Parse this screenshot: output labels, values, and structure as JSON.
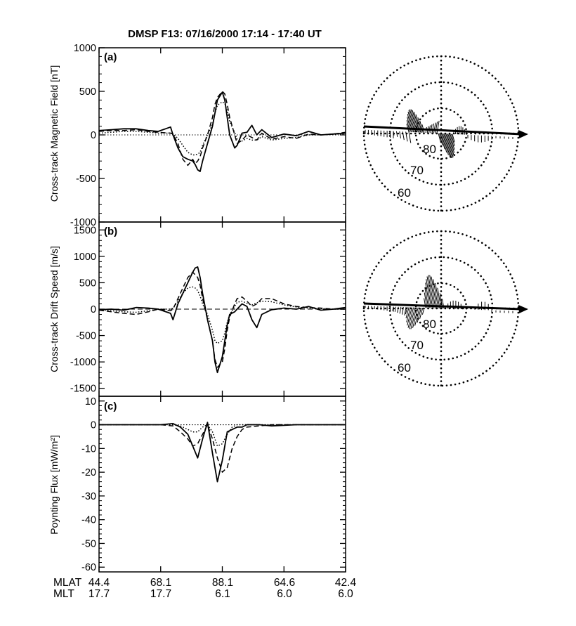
{
  "figure_title": "DMSP F13: 07/16/2000 17:14 - 17:40 UT",
  "chart_data": [
    {
      "type": "line",
      "panel_label": "(a)",
      "ylabel": "Cross-track Magnetic Field [nT]",
      "ylim": [
        -1000,
        1000
      ],
      "yticks": [
        1000,
        500,
        0,
        -500,
        -1000
      ],
      "ytick_labels": [
        "1000",
        "500",
        "0",
        "-500",
        "-1000"
      ],
      "zero_line": "dotted",
      "x": [
        0,
        0.05,
        0.1,
        0.15,
        0.2,
        0.24,
        0.29,
        0.3,
        0.32,
        0.34,
        0.36,
        0.38,
        0.39,
        0.4,
        0.41,
        0.42,
        0.44,
        0.46,
        0.47,
        0.48,
        0.5,
        0.51,
        0.52,
        0.53,
        0.55,
        0.56,
        0.58,
        0.6,
        0.62,
        0.64,
        0.66,
        0.7,
        0.75,
        0.8,
        0.85,
        0.9,
        0.95,
        1.0
      ],
      "series": [
        {
          "style": "solid",
          "values": [
            50,
            60,
            70,
            70,
            50,
            40,
            90,
            0,
            -150,
            -250,
            -280,
            -300,
            -340,
            -400,
            -420,
            -300,
            -100,
            100,
            250,
            400,
            490,
            400,
            200,
            0,
            -150,
            -120,
            20,
            30,
            110,
            0,
            60,
            -30,
            10,
            -10,
            40,
            0,
            10,
            20
          ]
        },
        {
          "style": "dashed",
          "values": [
            40,
            50,
            50,
            60,
            40,
            30,
            20,
            10,
            -100,
            -280,
            -350,
            -280,
            -330,
            -300,
            -250,
            -150,
            0,
            200,
            350,
            430,
            500,
            470,
            350,
            200,
            0,
            -100,
            -60,
            0,
            -30,
            -60,
            20,
            -50,
            -20,
            -40,
            10,
            0,
            10,
            30
          ]
        },
        {
          "style": "dotted",
          "values": [
            20,
            30,
            40,
            40,
            30,
            20,
            20,
            10,
            -40,
            -120,
            -200,
            -230,
            -230,
            -220,
            -200,
            -120,
            0,
            120,
            250,
            340,
            380,
            360,
            280,
            150,
            30,
            -50,
            -70,
            -40,
            -60,
            -60,
            -20,
            -60,
            -40,
            -30,
            0,
            0,
            10,
            10
          ]
        }
      ],
      "polar_inset": {
        "circle_labels": [
          "80",
          "70",
          "60"
        ],
        "description_free": true
      }
    },
    {
      "type": "line",
      "panel_label": "(b)",
      "ylabel": "Cross-track Drift Speed [m/s]",
      "ylim": [
        -1650,
        1650
      ],
      "yticks": [
        1500,
        1000,
        500,
        0,
        -500,
        -1000,
        -1500
      ],
      "ytick_labels": [
        "1500",
        "1000",
        "500",
        "0",
        "-500",
        "-1000",
        "-1500"
      ],
      "zero_line": "dashed",
      "x": [
        0,
        0.05,
        0.1,
        0.15,
        0.2,
        0.24,
        0.29,
        0.3,
        0.32,
        0.34,
        0.36,
        0.38,
        0.39,
        0.4,
        0.41,
        0.42,
        0.44,
        0.46,
        0.47,
        0.48,
        0.5,
        0.51,
        0.52,
        0.53,
        0.55,
        0.56,
        0.58,
        0.6,
        0.62,
        0.64,
        0.66,
        0.7,
        0.75,
        0.8,
        0.85,
        0.9,
        0.95,
        1.0
      ],
      "series": [
        {
          "style": "solid",
          "values": [
            -10,
            0,
            -20,
            30,
            20,
            0,
            -80,
            -200,
            100,
            300,
            500,
            700,
            780,
            800,
            600,
            300,
            -200,
            -600,
            -1000,
            -1200,
            -900,
            -600,
            -300,
            -100,
            -50,
            0,
            100,
            50,
            -200,
            -350,
            -100,
            -10,
            20,
            0,
            50,
            -20,
            0,
            30
          ]
        },
        {
          "style": "dashed",
          "values": [
            -20,
            -50,
            -80,
            -100,
            -50,
            0,
            -30,
            0,
            200,
            400,
            600,
            700,
            650,
            600,
            450,
            200,
            -200,
            -600,
            -950,
            -1100,
            -1000,
            -750,
            -400,
            -150,
            100,
            200,
            230,
            150,
            50,
            100,
            200,
            200,
            100,
            50,
            30,
            20,
            0,
            0
          ]
        },
        {
          "style": "dotted",
          "values": [
            -10,
            -30,
            -50,
            -60,
            -30,
            0,
            0,
            20,
            150,
            300,
            400,
            420,
            400,
            350,
            250,
            100,
            -100,
            -400,
            -600,
            -650,
            -600,
            -450,
            -250,
            -100,
            50,
            130,
            150,
            110,
            80,
            120,
            150,
            140,
            80,
            40,
            20,
            10,
            0,
            0
          ]
        }
      ],
      "polar_inset": {
        "circle_labels": [
          "80",
          "70",
          "60"
        ]
      }
    },
    {
      "type": "line",
      "panel_label": "(c)",
      "ylabel": "Poynting Flux [mW/m²]",
      "ylim": [
        -62,
        12
      ],
      "yticks": [
        10,
        0,
        -10,
        -20,
        -30,
        -40,
        -50,
        -60
      ],
      "ytick_labels": [
        "10",
        "0",
        "-10",
        "-20",
        "-30",
        "-40",
        "-50",
        "-60"
      ],
      "zero_line": "dotted",
      "x": [
        0,
        0.1,
        0.2,
        0.25,
        0.3,
        0.33,
        0.36,
        0.38,
        0.4,
        0.42,
        0.44,
        0.46,
        0.48,
        0.5,
        0.52,
        0.54,
        0.56,
        0.58,
        0.6,
        0.65,
        0.7,
        0.8,
        0.9,
        1.0
      ],
      "series": [
        {
          "style": "solid",
          "values": [
            0,
            0,
            0,
            0,
            0.5,
            -1,
            -4,
            -9,
            -14,
            -6,
            1,
            -12,
            -24,
            -15,
            -3,
            -2,
            -1,
            -1,
            0,
            0,
            -0.5,
            0,
            0,
            0
          ]
        },
        {
          "style": "dashed",
          "values": [
            0,
            0,
            0,
            0,
            -0.5,
            -3,
            -6,
            -9,
            -8,
            -4,
            0,
            -6,
            -14,
            -20,
            -18,
            -10,
            -5,
            -2,
            -1,
            -0.5,
            0,
            0,
            0,
            0
          ]
        },
        {
          "style": "dotted",
          "values": [
            0,
            0,
            0,
            0,
            0,
            -0.5,
            -2,
            -3,
            -3,
            -1,
            0,
            -3,
            -9,
            -8,
            -4,
            -1,
            0,
            0,
            0,
            0,
            0,
            0,
            0,
            0
          ]
        }
      ]
    }
  ],
  "x_axis": {
    "row_labels": [
      "MLAT",
      "MLT"
    ],
    "mlat": [
      "44.4",
      "68.1",
      "88.1",
      "64.6",
      "42.4"
    ],
    "mlt": [
      "17.7",
      "17.7",
      "6.1",
      "6.0",
      "6.0"
    ]
  }
}
